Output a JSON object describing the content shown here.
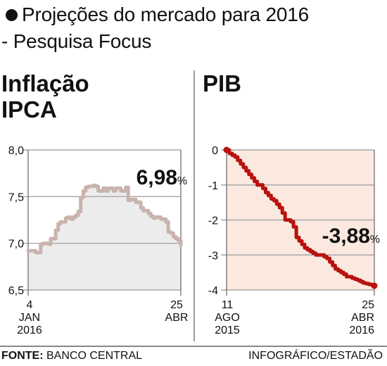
{
  "title": {
    "line1": "Projeções do mercado para 2016",
    "line2": "- Pesquisa Focus"
  },
  "footer": {
    "source_label": "FONTE:",
    "source_text": " BANCO CENTRAL",
    "credit": "INFOGRÁFICO/ESTADÃO"
  },
  "colors": {
    "ipca_line": "#c9b3ad",
    "ipca_fill": "#ececec",
    "pib_line": "#b8120f",
    "pib_fill": "#fbe8df",
    "grid": "#a8a8a8",
    "axis": "#7a7a7a"
  },
  "chart_data": [
    {
      "type": "line",
      "title": "Inflação IPCA",
      "title_lines": [
        "Inflação",
        "IPCA"
      ],
      "ylim": [
        6.5,
        8.0
      ],
      "yticks": [
        8.0,
        7.5,
        7.0,
        6.5
      ],
      "ytick_labels": [
        "8,0",
        "7,5",
        "7,0",
        "6,5"
      ],
      "xtick_labels": [
        {
          "lines": [
            "4",
            "JAN",
            "2016"
          ]
        },
        {
          "lines": [
            "25",
            "ABR"
          ]
        }
      ],
      "annotation": {
        "value": "6,98",
        "unit": "%"
      },
      "x_start": "2016-01-04",
      "x_end": "2016-04-25",
      "series": [
        {
          "values": [
            6.92,
            6.92,
            6.92,
            6.9,
            6.9,
            6.99,
            7.0,
            7.0,
            6.99,
            7.05,
            7.05,
            7.14,
            7.21,
            7.23,
            7.23,
            7.27,
            7.28,
            7.26,
            7.28,
            7.3,
            7.34,
            7.49,
            7.56,
            7.6,
            7.61,
            7.61,
            7.62,
            7.61,
            7.56,
            7.56,
            7.59,
            7.56,
            7.59,
            7.59,
            7.56,
            7.59,
            7.59,
            7.56,
            7.56,
            7.6,
            7.46,
            7.47,
            7.47,
            7.44,
            7.44,
            7.38,
            7.35,
            7.35,
            7.32,
            7.29,
            7.27,
            7.28,
            7.28,
            7.26,
            7.26,
            7.23,
            7.12,
            7.11,
            7.07,
            7.05,
            7.03,
            6.98
          ]
        }
      ]
    },
    {
      "type": "line",
      "title": "PIB",
      "title_lines": [
        "PIB"
      ],
      "ylim": [
        -4,
        0
      ],
      "yticks": [
        0,
        -1,
        -2,
        -3,
        -4
      ],
      "ytick_labels": [
        "0",
        "-1",
        "-2",
        "-3",
        "-4"
      ],
      "xtick_labels": [
        {
          "lines": [
            "11",
            "AGO",
            "2015"
          ]
        },
        {
          "lines": [
            "25",
            "ABR",
            "2016"
          ]
        }
      ],
      "annotation": {
        "value": "-3,88",
        "unit": "%"
      },
      "x_start": "2015-08-11",
      "x_end": "2016-04-25",
      "series": [
        {
          "values": [
            0.0,
            -0.1,
            -0.15,
            -0.2,
            -0.3,
            -0.4,
            -0.5,
            -0.6,
            -0.7,
            -0.8,
            -0.9,
            -1.0,
            -1.0,
            -1.1,
            -1.22,
            -1.3,
            -1.4,
            -1.45,
            -1.55,
            -1.65,
            -1.8,
            -2.0,
            -2.0,
            -2.05,
            -2.2,
            -2.5,
            -2.6,
            -2.7,
            -2.8,
            -2.85,
            -2.9,
            -2.95,
            -3.0,
            -3.0,
            -3.0,
            -3.05,
            -3.1,
            -3.2,
            -3.3,
            -3.4,
            -3.45,
            -3.5,
            -3.55,
            -3.62,
            -3.62,
            -3.66,
            -3.69,
            -3.72,
            -3.76,
            -3.8,
            -3.82,
            -3.84,
            -3.86,
            -3.88
          ]
        }
      ]
    }
  ]
}
